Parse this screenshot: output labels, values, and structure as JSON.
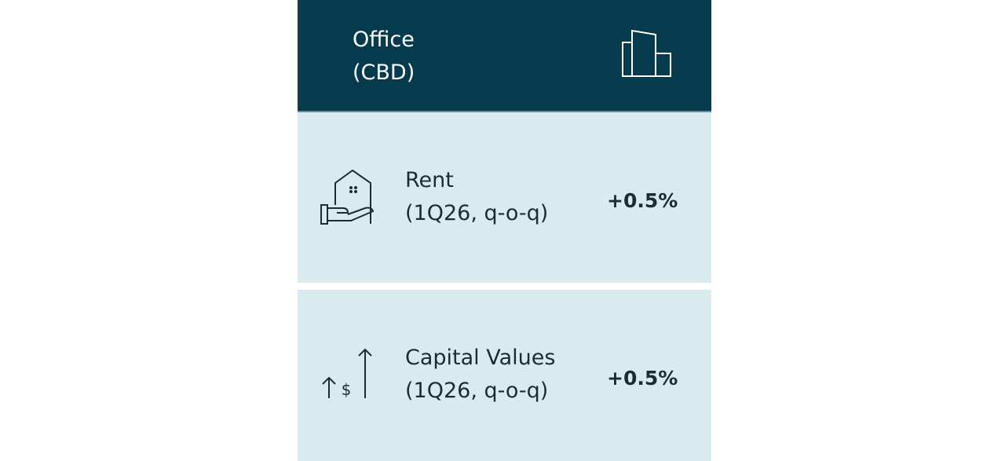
{
  "header": {
    "title_lines": [
      "Office",
      "(CBD)"
    ]
  },
  "rows": [
    {
      "label": "Rent",
      "period": "(1Q26, q-o-q)",
      "value": "+0.5%"
    },
    {
      "label": "Capital Values",
      "period": "(1Q26, q-o-q)",
      "value": "+0.5%"
    }
  ]
}
